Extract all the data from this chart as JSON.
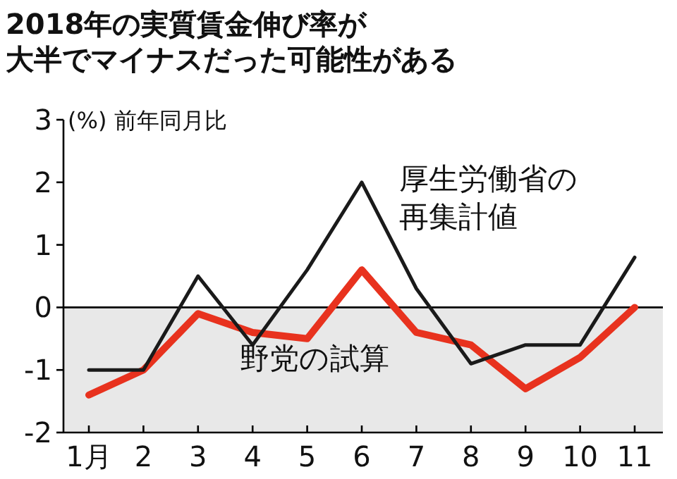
{
  "chart_data": {
    "type": "line",
    "title": "2018年の実質賃金伸び率が大半でマイナスだった可能性がある",
    "ylabel": "(%) 前年同月比",
    "categories": [
      "1月",
      "2",
      "3",
      "4",
      "5",
      "6",
      "7",
      "8",
      "9",
      "10",
      "11"
    ],
    "series": [
      {
        "name": "厚生労働省の再集計値",
        "color": "#1a1a1a",
        "values": [
          -1.0,
          -1.0,
          0.5,
          -0.6,
          0.6,
          2.0,
          0.3,
          -0.9,
          -0.6,
          -0.6,
          0.8
        ]
      },
      {
        "name": "野党の試算",
        "color": "#e8321e",
        "values": [
          -1.4,
          -1.0,
          -0.1,
          -0.4,
          -0.5,
          0.6,
          -0.4,
          -0.6,
          -1.3,
          -0.8,
          0.0
        ]
      }
    ],
    "ylim": [
      -2,
      3
    ],
    "yticks": [
      -2,
      -1,
      0,
      1,
      2,
      3
    ],
    "bands": [
      {
        "axis": "y",
        "from": -2,
        "to": 0,
        "color": "#e8e8e8"
      }
    ],
    "ref_lines": [
      {
        "axis": "y",
        "value": 0,
        "color": "#000000"
      }
    ],
    "grid": false,
    "marker": "none",
    "line_style": "solid"
  }
}
